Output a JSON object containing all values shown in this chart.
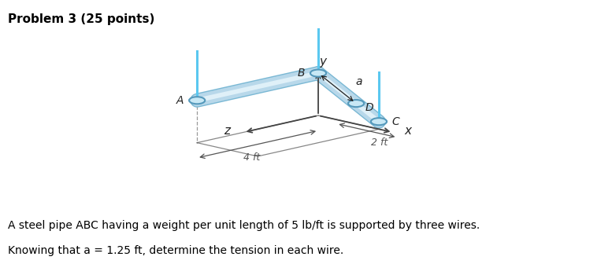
{
  "title": "Problem 3 (25 points)",
  "problem_text_line1": "A steel pipe ABC having a weight per unit length of 5 lb/ft is supported by three wires.",
  "problem_text_line2": "Knowing that a = 1.25 ft, determine the tension in each wire.",
  "bg_color": "#ffffff",
  "pipe_fill_color": "#b8d8ea",
  "pipe_edge_color": "#7ab8d4",
  "pipe_highlight_color": "#dff0f8",
  "axis_color": "#444444",
  "wire_color": "#5bc8f0",
  "point_fill": "#c8e8f5",
  "point_edge": "#5599bb",
  "label_color": "#222222",
  "dim_color": "#555555"
}
